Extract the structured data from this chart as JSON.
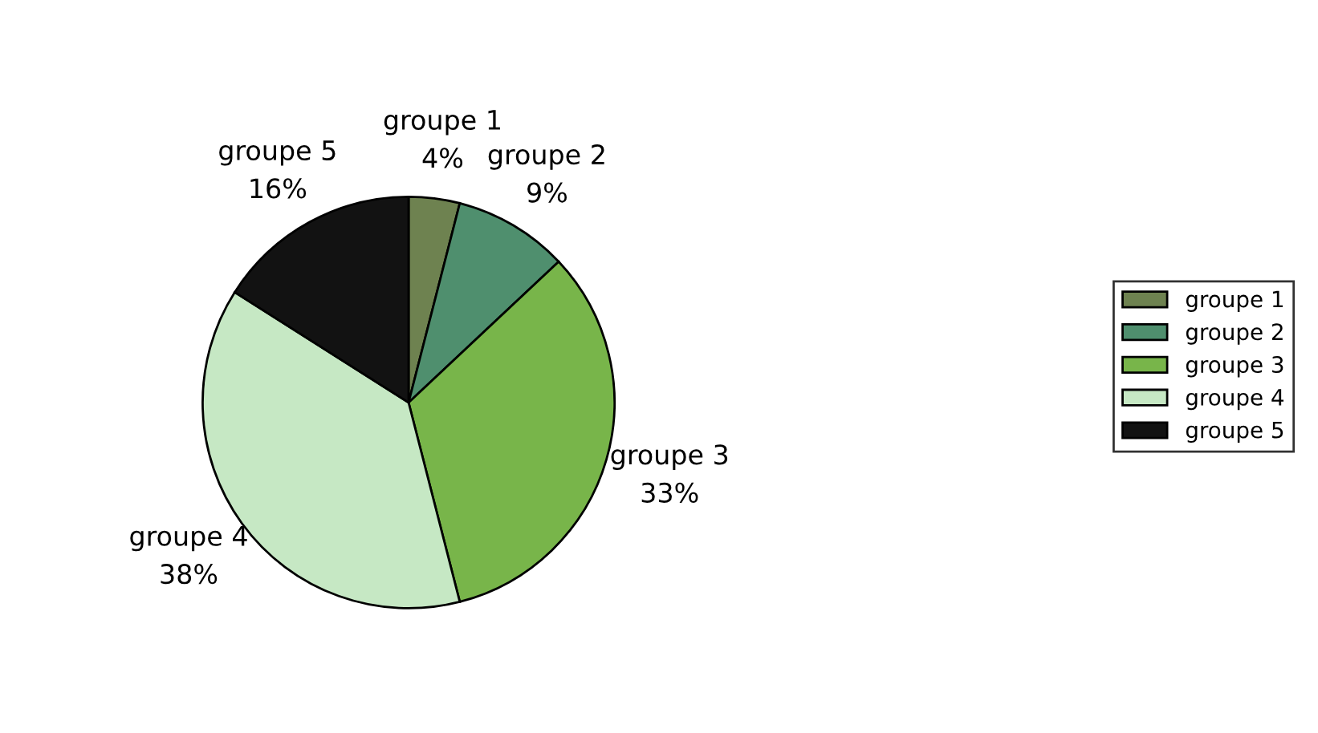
{
  "chart_data": {
    "type": "pie",
    "categories": [
      "groupe 1",
      "groupe 2",
      "groupe 3",
      "groupe 4",
      "groupe 5"
    ],
    "values": [
      4,
      9,
      33,
      38,
      16
    ],
    "value_labels": [
      "4%",
      "9%",
      "33%",
      "38%",
      "16%"
    ],
    "colors": [
      "#6e8250",
      "#4f8f6e",
      "#78b54a",
      "#c6e8c4",
      "#121212"
    ],
    "legend": "right"
  }
}
